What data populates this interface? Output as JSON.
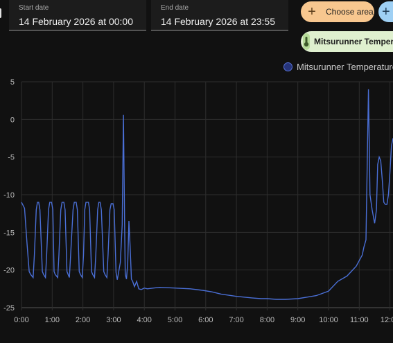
{
  "filters": {
    "start_label": "Start date",
    "start_value": "14 February 2026 at 00:00",
    "end_label": "End date",
    "end_value": "14 February 2026 at 23:55",
    "choose_area_label": "Choose area",
    "entity_chip_label": "Mitsurunner Temperature"
  },
  "colors": {
    "background": "#111111",
    "line": "#4a6fd6",
    "choose_area_bg": "#f8c78f",
    "entity_chip_bg": "#dff0cf"
  },
  "icons": {
    "choose_area": "plus-icon",
    "add": "plus-icon",
    "entity": "thermometer-icon"
  },
  "chart_data": {
    "type": "line",
    "legend": "Mitsurunner Temperature",
    "legend_position": "top-right",
    "grid": true,
    "ylim": [
      -25,
      5
    ],
    "y_ticks": [
      "5",
      "0",
      "-5",
      "-10",
      "-15",
      "-20",
      "-25"
    ],
    "x_ticks": [
      "0:00",
      "1:00",
      "2:00",
      "3:00",
      "4:00",
      "5:00",
      "6:00",
      "7:00",
      "8:00",
      "9:00",
      "10:00",
      "11:00",
      "12:00"
    ],
    "series": [
      {
        "name": "Mitsurunner Temperature",
        "x_hours": [
          0.0,
          0.1,
          0.18,
          0.25,
          0.3,
          0.38,
          0.42,
          0.48,
          0.52,
          0.56,
          0.6,
          0.68,
          0.72,
          0.78,
          0.82,
          0.88,
          0.92,
          0.98,
          1.02,
          1.06,
          1.1,
          1.18,
          1.22,
          1.28,
          1.32,
          1.38,
          1.42,
          1.48,
          1.52,
          1.56,
          1.6,
          1.68,
          1.72,
          1.78,
          1.82,
          1.88,
          1.92,
          1.98,
          2.02,
          2.06,
          2.1,
          2.18,
          2.22,
          2.28,
          2.32,
          2.38,
          2.42,
          2.48,
          2.52,
          2.56,
          2.6,
          2.68,
          2.72,
          2.78,
          2.82,
          2.88,
          2.92,
          2.98,
          3.02,
          3.08,
          3.12,
          3.22,
          3.28,
          3.32,
          3.36,
          3.38,
          3.42,
          3.46,
          3.5,
          3.54,
          3.58,
          3.62,
          3.68,
          3.75,
          3.82,
          3.9,
          4.0,
          4.1,
          4.3,
          4.5,
          5.0,
          5.5,
          5.9,
          6.2,
          6.5,
          7.0,
          7.5,
          7.8,
          8.0,
          8.3,
          8.6,
          9.0,
          9.3,
          9.6,
          10.0,
          10.3,
          10.6,
          10.9,
          11.1,
          11.15,
          11.22,
          11.3,
          11.35,
          11.42,
          11.5,
          11.56,
          11.6,
          11.65,
          11.7,
          11.75,
          11.8,
          11.85,
          11.9,
          11.95,
          12.0,
          12.05,
          12.1
        ],
        "values": [
          -11,
          -11.8,
          -16.5,
          -20.2,
          -20.6,
          -21,
          -18,
          -12,
          -11,
          -11,
          -12,
          -20.2,
          -20.6,
          -21,
          -18,
          -12,
          -11,
          -11,
          -12,
          -20.2,
          -20.6,
          -21,
          -18,
          -12,
          -11,
          -11,
          -12,
          -20.2,
          -20.6,
          -21,
          -18,
          -12,
          -11,
          -11,
          -12,
          -20.2,
          -20.6,
          -21,
          -18,
          -12,
          -11,
          -11,
          -12,
          -20.2,
          -20.6,
          -21,
          -18,
          -12,
          -11,
          -11,
          -12,
          -20.2,
          -20.6,
          -21,
          -18,
          -12,
          -11.2,
          -11.2,
          -12,
          -20.3,
          -21.3,
          -19,
          -14,
          0.6,
          -14,
          -20.6,
          -21.2,
          -19,
          -13.5,
          -17,
          -21.2,
          -21.5,
          -22.2,
          -21.5,
          -22.5,
          -22.6,
          -22.4,
          -22.5,
          -22.4,
          -22.3,
          -22.4,
          -22.5,
          -22.7,
          -22.9,
          -23.2,
          -23.5,
          -23.7,
          -23.8,
          -23.8,
          -23.9,
          -23.9,
          -23.8,
          -23.6,
          -23.4,
          -22.8,
          -21.5,
          -20.8,
          -19.5,
          -18,
          -17,
          -16,
          4,
          -10,
          -12,
          -13.8,
          -12,
          -6,
          -5,
          -5.5,
          -8,
          -11,
          -11.3,
          -11.3,
          -10,
          -7,
          -3.5,
          -2.5
        ]
      }
    ]
  }
}
